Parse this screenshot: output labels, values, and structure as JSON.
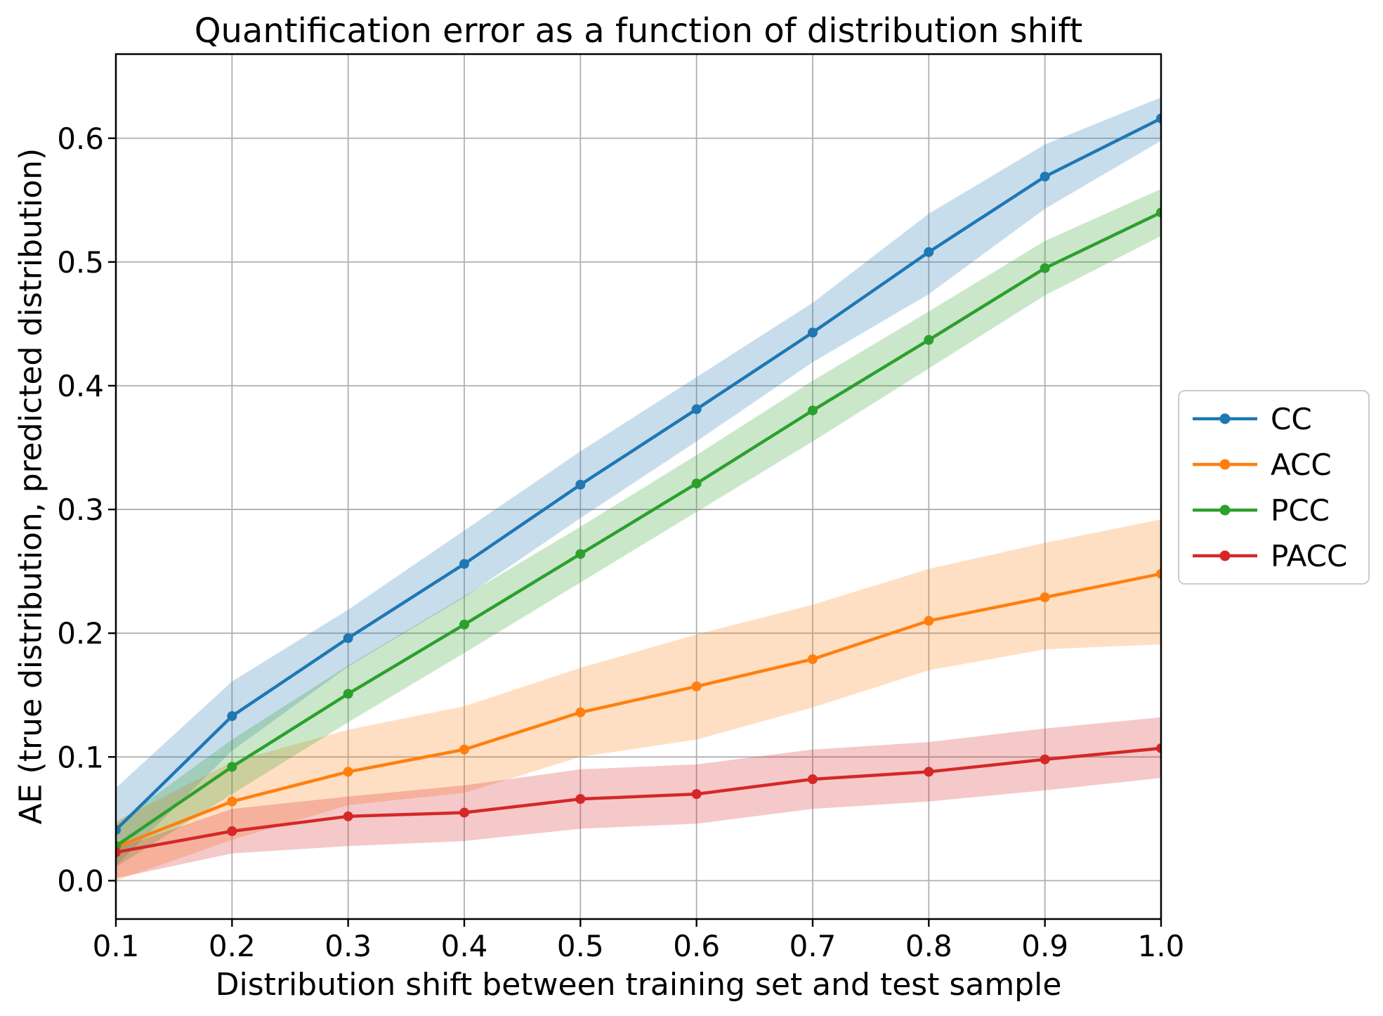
{
  "chart_data": {
    "type": "line",
    "title": "Quantification error as a function of distribution shift",
    "xlabel": "Distribution shift between training set and test sample",
    "ylabel": "AE (true distribution, predicted distribution)",
    "x": [
      0.1,
      0.2,
      0.3,
      0.4,
      0.5,
      0.6,
      0.7,
      0.8,
      0.9,
      1.0
    ],
    "xtick_labels": [
      "0.1",
      "0.2",
      "0.3",
      "0.4",
      "0.5",
      "0.6",
      "0.7",
      "0.8",
      "0.9",
      "1.0"
    ],
    "ytick_values": [
      0.0,
      0.1,
      0.2,
      0.3,
      0.4,
      0.5,
      0.6
    ],
    "ytick_labels": [
      "0.0",
      "0.1",
      "0.2",
      "0.3",
      "0.4",
      "0.5",
      "0.6"
    ],
    "xlim": [
      0.1,
      1.0
    ],
    "ylim": [
      -0.031,
      0.668
    ],
    "grid": true,
    "grid_color": "#b0b0b0",
    "axes_edge_color": "#000000",
    "legend_position": "right-outside",
    "band_opacity": 0.25,
    "series": [
      {
        "name": "CC",
        "color": "#1f77b4",
        "values": [
          0.041,
          0.133,
          0.196,
          0.256,
          0.32,
          0.381,
          0.443,
          0.508,
          0.569,
          0.616
        ],
        "band_lower": [
          0.012,
          0.105,
          0.173,
          0.229,
          0.293,
          0.355,
          0.419,
          0.474,
          0.543,
          0.598
        ],
        "band_upper": [
          0.075,
          0.161,
          0.219,
          0.283,
          0.347,
          0.407,
          0.467,
          0.539,
          0.595,
          0.633
        ]
      },
      {
        "name": "ACC",
        "color": "#ff7f0e",
        "values": [
          0.027,
          0.064,
          0.088,
          0.106,
          0.136,
          0.157,
          0.179,
          0.21,
          0.229,
          0.248
        ],
        "band_lower": [
          0.0,
          0.033,
          0.061,
          0.071,
          0.1,
          0.114,
          0.14,
          0.17,
          0.187,
          0.191
        ],
        "band_upper": [
          0.048,
          0.096,
          0.122,
          0.141,
          0.172,
          0.199,
          0.223,
          0.252,
          0.273,
          0.292
        ]
      },
      {
        "name": "PCC",
        "color": "#2ca02c",
        "values": [
          0.028,
          0.092,
          0.151,
          0.207,
          0.264,
          0.321,
          0.38,
          0.437,
          0.495,
          0.54
        ],
        "band_lower": [
          0.011,
          0.07,
          0.128,
          0.184,
          0.241,
          0.298,
          0.355,
          0.414,
          0.473,
          0.521
        ],
        "band_upper": [
          0.046,
          0.114,
          0.174,
          0.23,
          0.286,
          0.344,
          0.404,
          0.46,
          0.517,
          0.559
        ]
      },
      {
        "name": "PACC",
        "color": "#d62728",
        "values": [
          0.023,
          0.04,
          0.052,
          0.055,
          0.066,
          0.07,
          0.082,
          0.088,
          0.098,
          0.107
        ],
        "band_lower": [
          0.002,
          0.022,
          0.028,
          0.032,
          0.042,
          0.046,
          0.058,
          0.064,
          0.073,
          0.083
        ],
        "band_upper": [
          0.026,
          0.058,
          0.068,
          0.077,
          0.09,
          0.094,
          0.106,
          0.112,
          0.123,
          0.132
        ]
      }
    ]
  }
}
